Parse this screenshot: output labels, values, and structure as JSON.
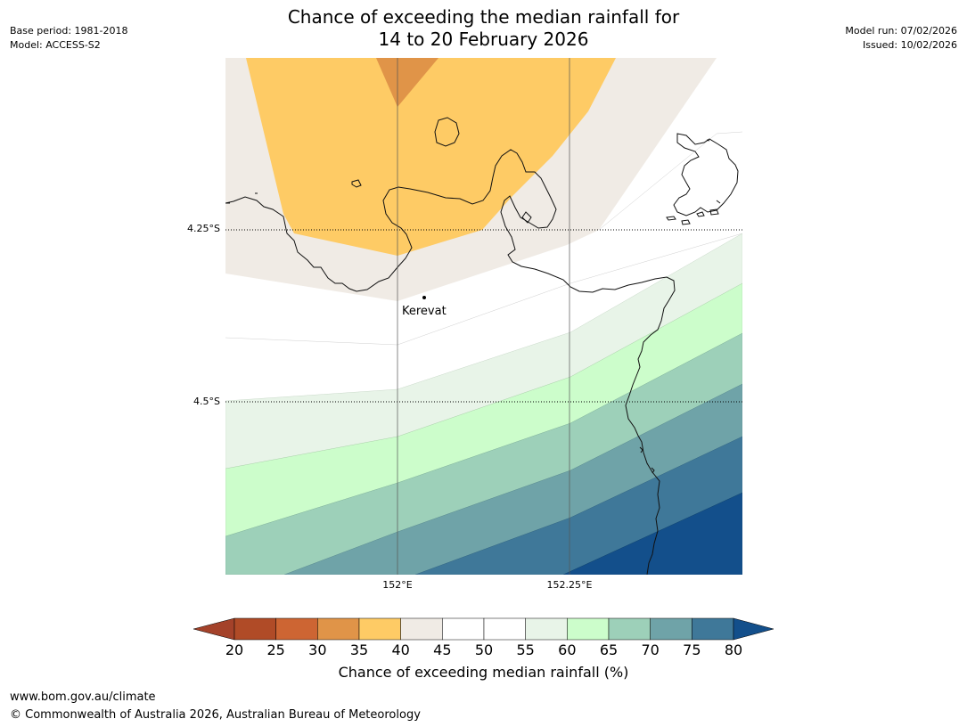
{
  "header": {
    "title_line1": "Chance of exceeding the median rainfall for",
    "title_line2": "14 to 20 February 2026",
    "base_period": "Base period: 1981-2018",
    "model": "Model: ACCESS-S2",
    "model_run": "Model run: 07/02/2026",
    "issued": "Issued: 10/02/2026"
  },
  "map": {
    "lat_labels": [
      "4.25°S",
      "4.5°S"
    ],
    "lon_labels": [
      "152°E",
      "152.25°E"
    ],
    "place": "Kerevat",
    "band_colors": {
      "35-40": "#fecb65",
      "30-35": "#e09448",
      "40-45": "#f0ebe5",
      "55-60": "#e8f4e8",
      "60-65": "#ccfdcb",
      "65-70": "#9dd0b9",
      "70-75": "#6fa3a8",
      "75-80": "#3f7899",
      ">80": "#134f8b"
    }
  },
  "colorbar": {
    "ticks": [
      "20",
      "25",
      "30",
      "35",
      "40",
      "45",
      "50",
      "55",
      "60",
      "65",
      "70",
      "75",
      "80"
    ],
    "colors": [
      "#a4422a",
      "#b04b27",
      "#cd6533",
      "#e09448",
      "#fecb65",
      "#f0ebe5",
      "#ffffff",
      "#ffffff",
      "#e8f4e8",
      "#ccfdcb",
      "#9dd0b9",
      "#6fa3a8",
      "#3f7899",
      "#134f8b"
    ],
    "label": "Chance of exceeding median rainfall (%)"
  },
  "footer": {
    "url": "www.bom.gov.au/climate",
    "copyright": "© Commonwealth of Australia 2026, Australian Bureau of Meteorology"
  }
}
